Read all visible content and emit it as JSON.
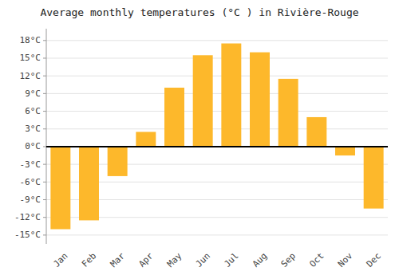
{
  "chart_data": {
    "type": "bar",
    "title": "Average monthly temperatures (°C ) in Rivière-Rouge",
    "categories": [
      "Jan",
      "Feb",
      "Mar",
      "Apr",
      "May",
      "Jun",
      "Jul",
      "Aug",
      "Sep",
      "Oct",
      "Nov",
      "Dec"
    ],
    "values": [
      -14,
      -12.5,
      -5,
      2.5,
      10,
      15.5,
      17.5,
      16,
      11.5,
      5,
      -1.5,
      -10.5
    ],
    "color": "#FDB82B",
    "ylim": [
      -16.5,
      20
    ],
    "yticks": [
      {
        "value": -15,
        "label": "-15°C"
      },
      {
        "value": -12,
        "label": "-12°C"
      },
      {
        "value": -9,
        "label": "-9°C"
      },
      {
        "value": -6,
        "label": "-6°C"
      },
      {
        "value": -3,
        "label": "-3°C"
      },
      {
        "value": 0,
        "label": "0°C"
      },
      {
        "value": 3,
        "label": "3°C"
      },
      {
        "value": 6,
        "label": "6°C"
      },
      {
        "value": 9,
        "label": "9°C"
      },
      {
        "value": 12,
        "label": "12°C"
      },
      {
        "value": 15,
        "label": "15°C"
      },
      {
        "value": 18,
        "label": "18°C"
      }
    ],
    "grid": true
  }
}
